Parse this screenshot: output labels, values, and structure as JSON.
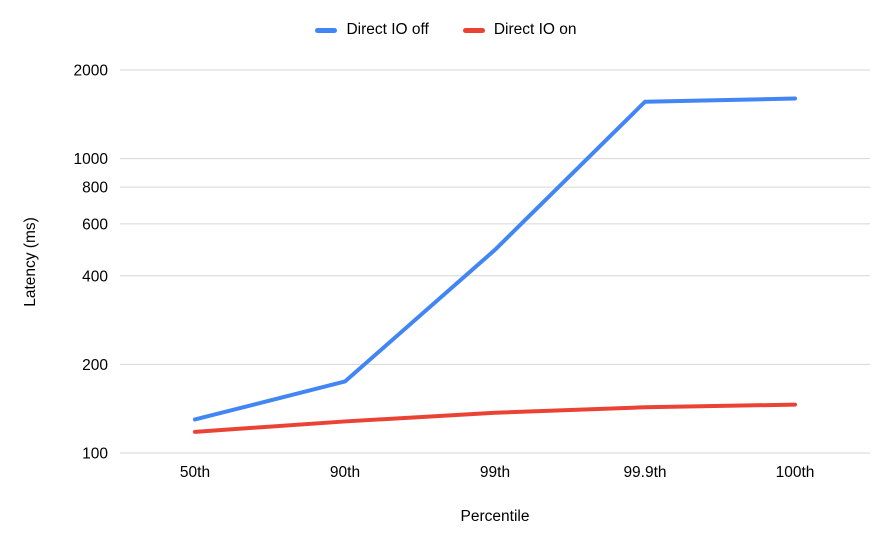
{
  "legend": {
    "items": [
      {
        "label": "Direct IO off",
        "color": "#4285F4"
      },
      {
        "label": "Direct IO on",
        "color": "#EA4335"
      }
    ]
  },
  "chart_data": {
    "type": "line",
    "categories": [
      "50th",
      "90th",
      "99th",
      "99.9th",
      "100th"
    ],
    "series": [
      {
        "name": "Direct IO off",
        "color": "#4285F4",
        "values": [
          130,
          175,
          490,
          1560,
          1600
        ]
      },
      {
        "name": "Direct IO on",
        "color": "#EA4335",
        "values": [
          118,
          128,
          137,
          143,
          146
        ]
      }
    ],
    "title": "",
    "xlabel": "Percentile",
    "ylabel": "Latency (ms)",
    "yscale": "log",
    "yticks": [
      100,
      200,
      400,
      600,
      800,
      1000,
      2000
    ],
    "ylim": [
      100,
      2250
    ],
    "grid": true,
    "gridline_color": "#d6d6d6",
    "legend_position": "top"
  }
}
